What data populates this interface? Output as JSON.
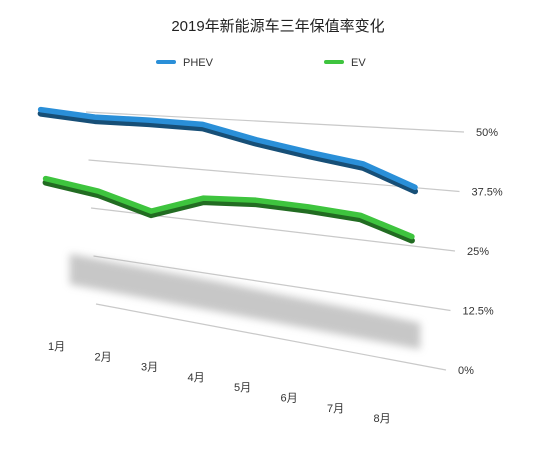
{
  "chart_data": {
    "type": "line",
    "title": "2019年新能源车三年保值率变化",
    "categories": [
      "1月",
      "2月",
      "3月",
      "4月",
      "5月",
      "6月",
      "7月",
      "8月"
    ],
    "series": [
      {
        "name": "PHEV",
        "color": "#2a8fd8",
        "values": [
          50.0,
          48.8,
          48.8,
          48.5,
          45.6,
          43.5,
          41.8,
          37.6
        ]
      },
      {
        "name": "EV",
        "color": "#3ec43e",
        "values": [
          31.5,
          29.6,
          26.0,
          30.6,
          31.4,
          31.1,
          30.4,
          27.0
        ]
      }
    ],
    "yticks": [
      "0%",
      "12.5%",
      "25%",
      "37.5%",
      "50%"
    ],
    "ytick_values": [
      0,
      12.5,
      25,
      37.5,
      50
    ],
    "ylim": [
      0,
      50
    ],
    "xlabel": "",
    "ylabel": "",
    "legend_position": "top",
    "grid": true
  }
}
